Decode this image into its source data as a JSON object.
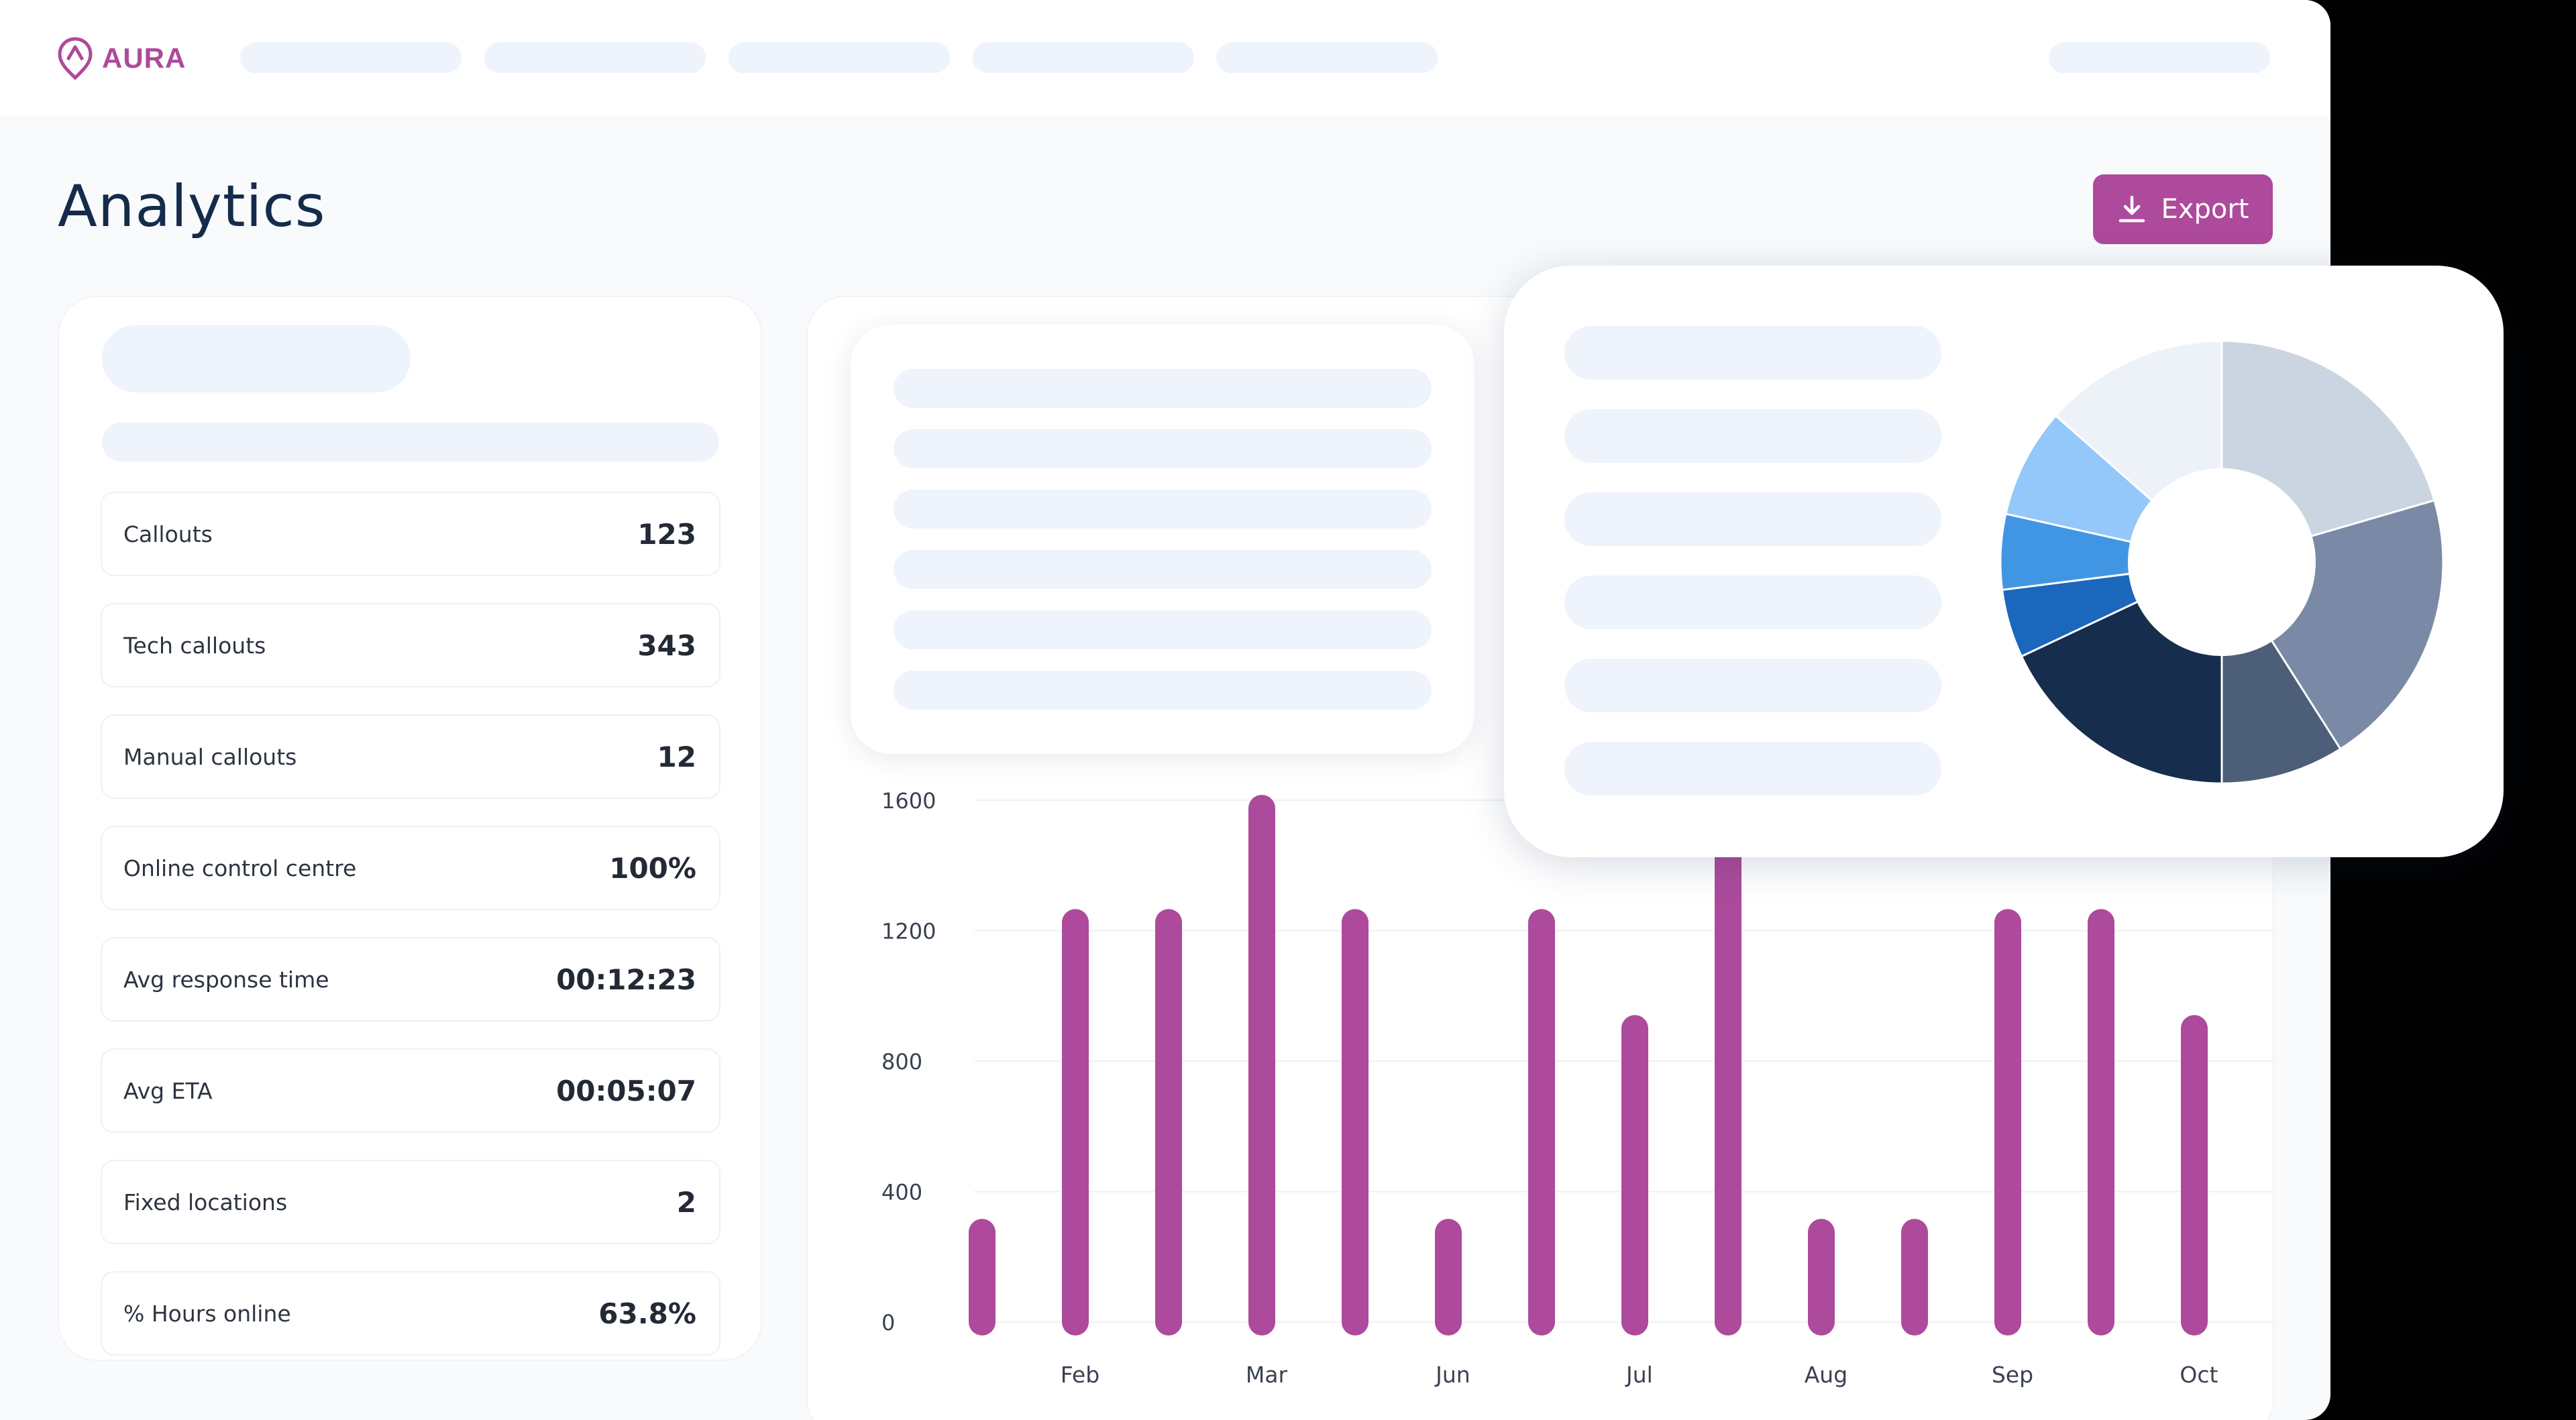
{
  "app": {
    "brand": "AURA",
    "accent_color": "#ad4a9b",
    "title_color": "#152b4b"
  },
  "page": {
    "title": "Analytics",
    "export_label": "Export",
    "export_icon": "download-icon"
  },
  "stats": [
    {
      "label": "Callouts",
      "value": "123"
    },
    {
      "label": "Tech callouts",
      "value": "343"
    },
    {
      "label": "Manual callouts",
      "value": "12"
    },
    {
      "label": "Online control centre",
      "value": "100%"
    },
    {
      "label": "Avg response time",
      "value": "00:12:23"
    },
    {
      "label": "Avg ETA",
      "value": "00:05:07"
    },
    {
      "label": "Fixed locations",
      "value": "2"
    },
    {
      "label": "% Hours online",
      "value": "63.8%"
    }
  ],
  "chart_data": [
    {
      "type": "bar",
      "y_ticks": [
        "0",
        "400",
        "800",
        "1200",
        "1600"
      ],
      "ylim": [
        0,
        1600
      ],
      "x_tick_labels": [
        "Feb",
        "Mar",
        "Jun",
        "Jul",
        "Aug",
        "Sep",
        "Oct"
      ],
      "values": [
        300,
        1250,
        1250,
        1600,
        1250,
        300,
        1250,
        925,
        1600,
        300,
        300,
        1250,
        1250,
        925
      ],
      "bar_color": "#ad4a9b",
      "grid": true
    },
    {
      "type": "pie",
      "donut": true,
      "slices": [
        {
          "value": 20.5,
          "color": "#cbd5e1"
        },
        {
          "value": 20.5,
          "color": "#7a8aa6"
        },
        {
          "value": 9,
          "color": "#4d5e78"
        },
        {
          "value": 18,
          "color": "#162d4e"
        },
        {
          "value": 5,
          "color": "#1a67bb"
        },
        {
          "value": 5.5,
          "color": "#4196e3"
        },
        {
          "value": 8,
          "color": "#94c8fa"
        },
        {
          "value": 13.5,
          "color": "#edf2f9"
        }
      ]
    }
  ]
}
